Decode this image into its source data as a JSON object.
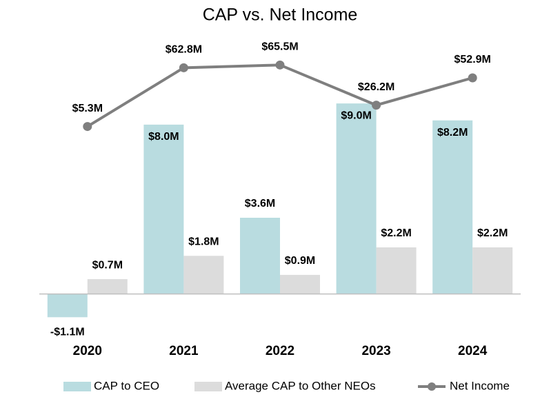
{
  "chart_data": {
    "type": "bar",
    "title": "CAP vs. Net Income",
    "categories": [
      "2020",
      "2021",
      "2022",
      "2023",
      "2024"
    ],
    "series": [
      {
        "name": "CAP to CEO",
        "color": "#b9dce0",
        "values": [
          -1.1,
          8.0,
          3.6,
          9.0,
          8.2
        ],
        "value_labels": [
          "-$1.1M",
          "$8.0M",
          "$3.6M",
          "$9.0M",
          "$8.2M"
        ]
      },
      {
        "name": "Average CAP to Other NEOs",
        "color": "#dcdcdc",
        "values": [
          0.7,
          1.8,
          0.9,
          2.2,
          2.2
        ],
        "value_labels": [
          "$0.7M",
          "$1.8M",
          "$0.9M",
          "$2.2M",
          "$2.2M"
        ]
      },
      {
        "name": "Net Income",
        "color": "#7f7f7f",
        "type": "line",
        "axis": "y2",
        "values": [
          5.3,
          62.8,
          65.5,
          26.2,
          52.9
        ],
        "value_labels": [
          "$5.3M",
          "$62.8M",
          "$65.5M",
          "$26.2M",
          "$52.9M"
        ]
      }
    ],
    "ylim": [
      -2,
      12
    ],
    "y2lim": [
      -200,
      90
    ],
    "grid": false,
    "legend": "bottom"
  }
}
